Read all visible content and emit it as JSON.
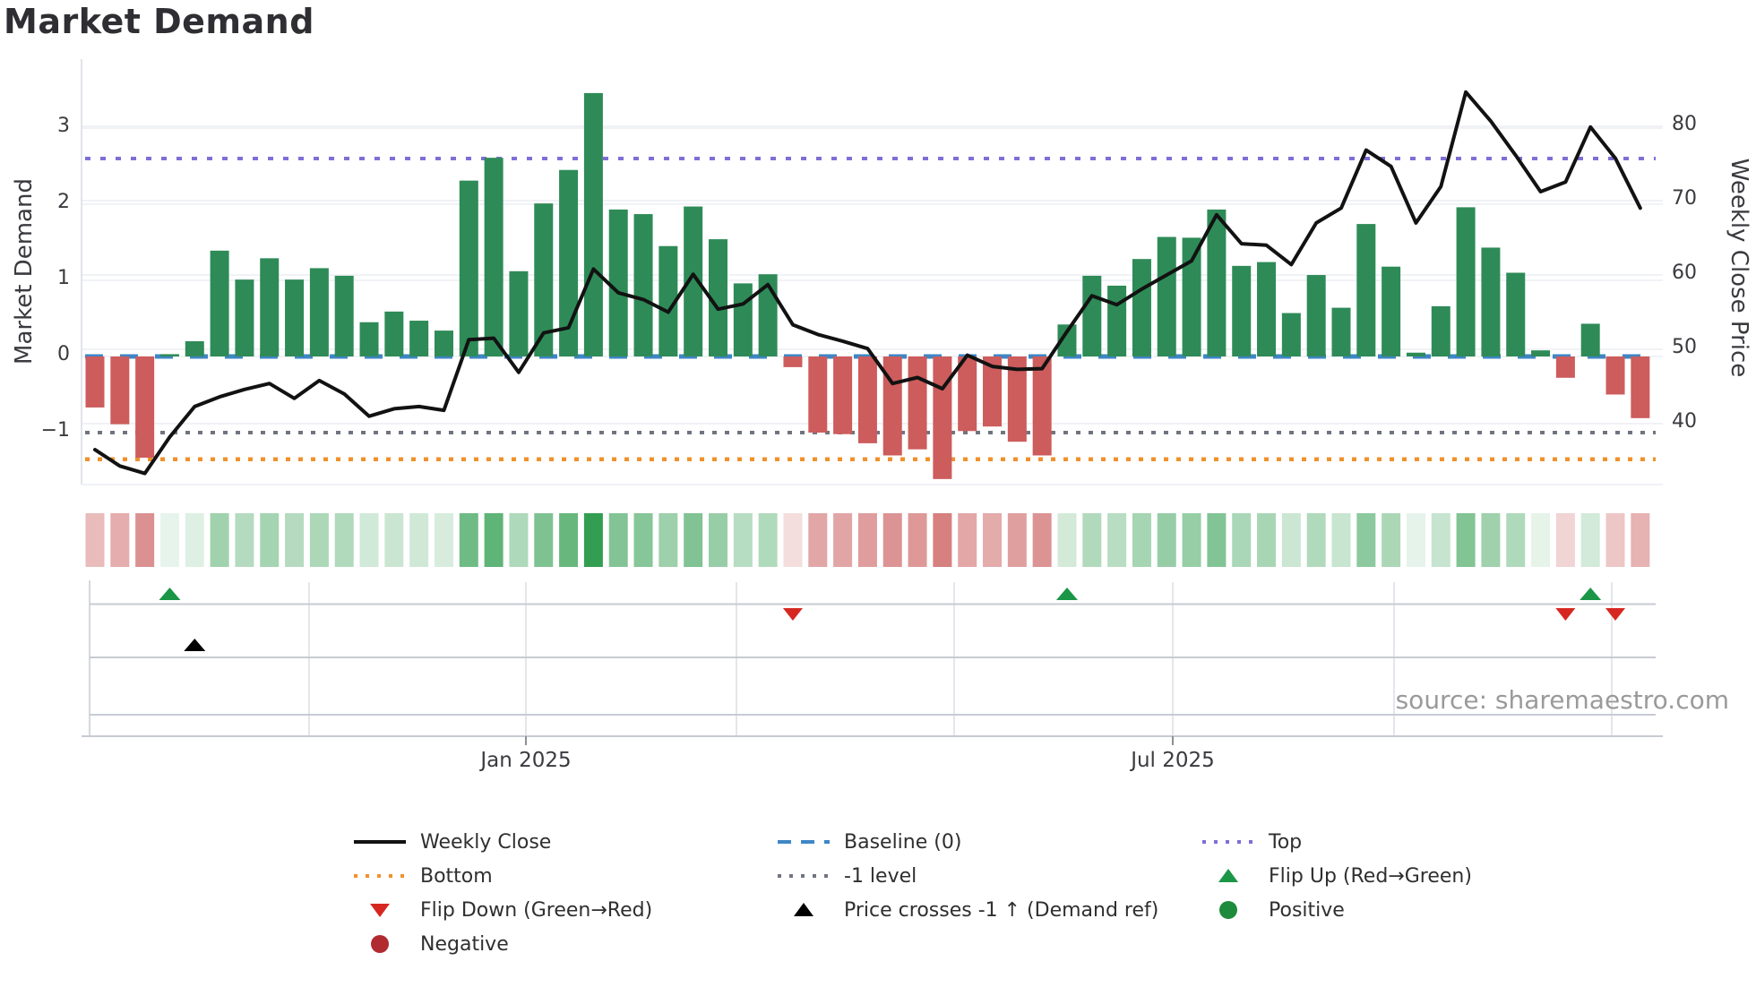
{
  "title": "Market Demand",
  "left_axis": {
    "label": "Market Demand",
    "ticks": [
      "3",
      "2",
      "1",
      "0",
      "−1"
    ],
    "tick_values": [
      3,
      2,
      1,
      0,
      -1
    ]
  },
  "right_axis": {
    "label": "Weekly Close Price",
    "ticks": [
      "80",
      "70",
      "60",
      "50",
      "40"
    ],
    "tick_values": [
      80,
      70,
      60,
      50,
      40
    ]
  },
  "x_axis": {
    "tick_labels": [
      "Jan 2025",
      "Jul 2025"
    ]
  },
  "source": "source: sharemaestro.com",
  "colors": {
    "bar_positive": "#2E8B57",
    "bar_negative": "#CD5C5C",
    "price_line": "#121212",
    "baseline": "#3E86C6",
    "top_line": "#7D6FD6",
    "minus_one_line": "#70747F",
    "bottom_line": "#F0912C",
    "flip_up": "#1A9646",
    "flip_down": "#D62820",
    "price_cross": "#000000",
    "positive_dot": "#1E8B3C",
    "negative_dot": "#B02A30",
    "gridline": "#ECEEF4",
    "spine": "#D9DDE5",
    "row_line": "#C7CBD2",
    "v_gridline": "#E4E6EB",
    "strip_green_base": "#219642",
    "strip_red_base": "#C85555"
  },
  "legend": [
    {
      "col": 0,
      "row": 0,
      "type": "line",
      "color_key": "price_line",
      "label": "Weekly Close"
    },
    {
      "col": 1,
      "row": 0,
      "type": "dash",
      "color_key": "baseline",
      "label": "Baseline (0)"
    },
    {
      "col": 2,
      "row": 0,
      "type": "dot",
      "color_key": "top_line",
      "label": "Top"
    },
    {
      "col": 0,
      "row": 1,
      "type": "dot",
      "color_key": "bottom_line",
      "label": "Bottom"
    },
    {
      "col": 1,
      "row": 1,
      "type": "dot",
      "color_key": "minus_one_line",
      "label": "-1 level"
    },
    {
      "col": 2,
      "row": 1,
      "type": "tri-up",
      "color_key": "flip_up",
      "label": "Flip Up (Red→Green)"
    },
    {
      "col": 0,
      "row": 2,
      "type": "tri-down",
      "color_key": "flip_down",
      "label": "Flip Down (Green→Red)"
    },
    {
      "col": 1,
      "row": 2,
      "type": "tri-up",
      "color_key": "price_cross",
      "label": "Price crosses -1 ↑ (Demand ref)"
    },
    {
      "col": 2,
      "row": 2,
      "type": "circle",
      "color_key": "positive_dot",
      "label": "Positive"
    },
    {
      "col": 0,
      "row": 3,
      "type": "circle",
      "color_key": "negative_dot",
      "label": "Negative"
    }
  ],
  "chart_data": {
    "type": "bar+line",
    "x_unit": "weekly",
    "x_tick_labels": [
      "Jan 2025",
      "Jul 2025"
    ],
    "series": [
      {
        "name": "Market Demand",
        "type": "bar",
        "axis": "left",
        "values": [
          -0.67,
          -0.89,
          -1.33,
          0.03,
          0.2,
          1.39,
          1.01,
          1.29,
          1.01,
          1.16,
          1.06,
          0.45,
          0.59,
          0.47,
          0.34,
          2.31,
          2.61,
          1.12,
          2.01,
          2.45,
          3.46,
          1.93,
          1.87,
          1.45,
          1.97,
          1.54,
          0.96,
          1.08,
          -0.14,
          -1.0,
          -1.02,
          -1.14,
          -1.3,
          -1.22,
          -1.61,
          -0.98,
          -0.92,
          -1.12,
          -1.3,
          0.42,
          1.06,
          0.93,
          1.28,
          1.57,
          1.56,
          1.93,
          1.19,
          1.24,
          0.57,
          1.07,
          0.64,
          1.74,
          1.18,
          0.05,
          0.66,
          1.96,
          1.43,
          1.1,
          0.08,
          -0.28,
          0.43,
          -0.5,
          -0.81
        ]
      },
      {
        "name": "Weekly Close",
        "type": "line",
        "axis": "right",
        "values": [
          36.5,
          34.3,
          33.3,
          38.2,
          42.3,
          43.6,
          44.6,
          45.4,
          43.4,
          45.8,
          44.0,
          41.0,
          42.0,
          42.3,
          41.8,
          51.3,
          51.5,
          46.9,
          52.2,
          52.9,
          60.8,
          57.6,
          56.7,
          55.0,
          60.1,
          55.4,
          56.1,
          58.7,
          53.3,
          52.0,
          51.1,
          50.1,
          45.4,
          46.2,
          44.7,
          49.2,
          47.7,
          47.3,
          47.4,
          52.4,
          57.2,
          56.0,
          58.1,
          60.0,
          61.9,
          68.1,
          64.2,
          64.0,
          61.4,
          67.0,
          69.0,
          76.8,
          74.6,
          67.0,
          71.9,
          84.6,
          80.7,
          76.1,
          71.2,
          72.5,
          79.9,
          75.7,
          69.0
        ]
      }
    ],
    "reference_lines": {
      "baseline": 0,
      "top": 2.6,
      "minus_one_level": -1,
      "bottom": -1.35
    },
    "markers": {
      "flip_up_indices": [
        3,
        39,
        60
      ],
      "flip_down_indices": [
        28,
        59,
        61
      ],
      "price_cross_indices": [
        4
      ]
    },
    "left_ylim": [
      -1.68,
      3.9
    ],
    "right_ylim": [
      31.5,
      86.5
    ],
    "grid": true,
    "legend_position": "bottom"
  }
}
